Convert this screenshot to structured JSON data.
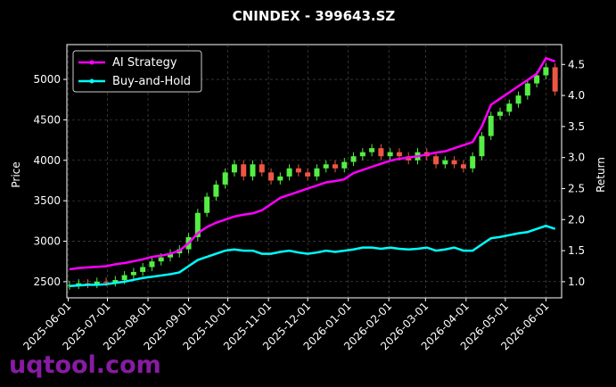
{
  "chart_data": {
    "type": "candlestick-returns",
    "title": "CNINDEX - 399643.SZ",
    "ylabel": "Price",
    "y2label": "Return",
    "watermark": "uqtool.com",
    "grid": true,
    "legend": "upper left",
    "up_color": "#55ee44",
    "down_color": "#ee5544",
    "x": [
      "2025-06-02",
      "2025-06-09",
      "2025-06-16",
      "2025-06-23",
      "2025-06-30",
      "2025-07-07",
      "2025-07-14",
      "2025-07-21",
      "2025-07-28",
      "2025-08-04",
      "2025-08-11",
      "2025-08-18",
      "2025-08-25",
      "2025-09-01",
      "2025-09-08",
      "2025-09-15",
      "2025-09-22",
      "2025-09-29",
      "2025-10-06",
      "2025-10-13",
      "2025-10-20",
      "2025-10-27",
      "2025-11-03",
      "2025-11-10",
      "2025-11-17",
      "2025-11-24",
      "2025-12-01",
      "2025-12-08",
      "2025-12-15",
      "2025-12-22",
      "2025-12-29",
      "2026-01-05",
      "2026-01-12",
      "2026-01-19",
      "2026-01-26",
      "2026-02-02",
      "2026-02-09",
      "2026-02-16",
      "2026-02-23",
      "2026-03-02",
      "2026-03-09",
      "2026-03-16",
      "2026-03-23",
      "2026-03-30",
      "2026-04-06",
      "2026-04-13",
      "2026-04-20",
      "2026-04-27",
      "2026-05-04",
      "2026-05-11",
      "2026-05-18",
      "2026-05-25",
      "2026-06-01",
      "2026-06-08"
    ],
    "open": [
      2450,
      2460,
      2480,
      2470,
      2500,
      2490,
      2520,
      2580,
      2620,
      2680,
      2750,
      2800,
      2850,
      2900,
      3050,
      3350,
      3550,
      3700,
      3850,
      3950,
      3800,
      3950,
      3850,
      3750,
      3800,
      3900,
      3850,
      3800,
      3900,
      3950,
      3900,
      3980,
      4050,
      4100,
      4150,
      4050,
      4100,
      4050,
      4000,
      4100,
      4050,
      3950,
      4000,
      3950,
      3900,
      4050,
      4300,
      4550,
      4600,
      4700,
      4800,
      4950,
      5050,
      5150
    ],
    "high": [
      2510,
      2530,
      2530,
      2550,
      2550,
      2570,
      2630,
      2670,
      2730,
      2800,
      2850,
      2900,
      2950,
      3100,
      3400,
      3600,
      3750,
      3900,
      4000,
      4000,
      4000,
      4000,
      3900,
      3850,
      3950,
      3950,
      3900,
      3950,
      4000,
      4000,
      4030,
      4100,
      4150,
      4200,
      4200,
      4150,
      4150,
      4100,
      4150,
      4150,
      4100,
      4050,
      4050,
      4000,
      4100,
      4350,
      4600,
      4650,
      4750,
      4850,
      5000,
      5100,
      5200,
      5200
    ],
    "low": [
      2400,
      2410,
      2420,
      2420,
      2440,
      2440,
      2470,
      2530,
      2570,
      2630,
      2700,
      2750,
      2800,
      2850,
      3000,
      3300,
      3500,
      3650,
      3800,
      3750,
      3750,
      3800,
      3700,
      3700,
      3750,
      3800,
      3750,
      3750,
      3850,
      3850,
      3850,
      3930,
      4000,
      4050,
      4000,
      4000,
      4000,
      3950,
      3950,
      4000,
      3900,
      3900,
      3900,
      3850,
      3850,
      4000,
      4250,
      4500,
      4550,
      4650,
      4750,
      4900,
      5000,
      4800
    ],
    "close": [
      2460,
      2480,
      2470,
      2500,
      2490,
      2520,
      2580,
      2620,
      2680,
      2750,
      2800,
      2850,
      2900,
      3050,
      3350,
      3550,
      3700,
      3850,
      3950,
      3800,
      3950,
      3850,
      3750,
      3800,
      3900,
      3850,
      3800,
      3900,
      3950,
      3900,
      3980,
      4050,
      4100,
      4150,
      4050,
      4100,
      4050,
      4000,
      4100,
      4050,
      3950,
      4000,
      3950,
      3900,
      4050,
      4300,
      4550,
      4600,
      4700,
      4800,
      4950,
      5050,
      5150,
      4850
    ],
    "series": [
      {
        "name": "AI Strategy",
        "color": "#ff00ff",
        "axis": "y2",
        "values": [
          1.2,
          1.22,
          1.23,
          1.24,
          1.25,
          1.28,
          1.3,
          1.33,
          1.36,
          1.4,
          1.42,
          1.45,
          1.5,
          1.62,
          1.78,
          1.88,
          1.95,
          2.0,
          2.05,
          2.08,
          2.1,
          2.15,
          2.25,
          2.35,
          2.4,
          2.45,
          2.5,
          2.55,
          2.6,
          2.62,
          2.65,
          2.75,
          2.8,
          2.85,
          2.9,
          2.95,
          2.98,
          3.0,
          3.02,
          3.05,
          3.08,
          3.1,
          3.15,
          3.2,
          3.25,
          3.5,
          3.85,
          3.95,
          4.05,
          4.15,
          4.25,
          4.35,
          4.6,
          4.55
        ]
      },
      {
        "name": "Buy-and-Hold",
        "color": "#00ffff",
        "axis": "y2",
        "values": [
          0.93,
          0.94,
          0.95,
          0.95,
          0.96,
          0.98,
          1.0,
          1.03,
          1.06,
          1.08,
          1.1,
          1.12,
          1.15,
          1.25,
          1.35,
          1.4,
          1.45,
          1.5,
          1.52,
          1.5,
          1.5,
          1.45,
          1.45,
          1.48,
          1.5,
          1.47,
          1.45,
          1.47,
          1.5,
          1.48,
          1.5,
          1.52,
          1.55,
          1.55,
          1.53,
          1.55,
          1.53,
          1.52,
          1.53,
          1.55,
          1.5,
          1.52,
          1.55,
          1.5,
          1.5,
          1.6,
          1.7,
          1.72,
          1.75,
          1.78,
          1.8,
          1.85,
          1.9,
          1.85
        ]
      }
    ],
    "xlim": [
      "2025-05-31",
      "2026-06-13"
    ],
    "xticks": [
      "2025-06-01",
      "2025-07-01",
      "2025-08-01",
      "2025-09-01",
      "2025-10-01",
      "2025-11-01",
      "2025-12-01",
      "2026-01-01",
      "2026-02-01",
      "2026-03-01",
      "2026-04-01",
      "2026-05-01",
      "2026-06-01"
    ],
    "ylim": [
      2300,
      5430
    ],
    "yticks": [
      2500,
      3000,
      3500,
      4000,
      4500,
      5000
    ],
    "y2lim": [
      0.74,
      4.82
    ],
    "y2ticks": [
      {
        "value": 1,
        "label": "1.0"
      },
      1.5,
      {
        "value": 2,
        "label": "2.0"
      },
      2.5,
      {
        "value": 3,
        "label": "3.0"
      },
      3.5,
      {
        "value": 4,
        "label": "4.0"
      },
      4.5
    ]
  }
}
